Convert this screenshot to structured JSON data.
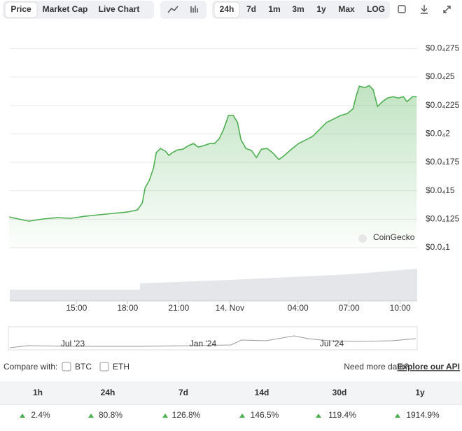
{
  "toolbar": {
    "tabs": [
      "Price",
      "Market Cap",
      "Live Chart"
    ],
    "ranges": [
      "24h",
      "7d",
      "1m",
      "3m",
      "1y",
      "Max",
      "LOG"
    ]
  },
  "chart_data": {
    "type": "line",
    "color": "#4caf50",
    "watermark": "CoinGecko",
    "x": [
      -0.95,
      -0.41,
      0.21,
      1.03,
      1.85,
      2.67,
      3.49,
      4.32,
      5.14,
      5.96,
      6.58,
      6.86,
      7.03,
      7.27,
      7.52,
      7.68,
      7.93,
      8.22,
      8.42,
      8.63,
      8.92,
      9.25,
      9.58,
      9.86,
      10.15,
      10.48,
      10.81,
      11.1,
      11.38,
      11.63,
      11.92,
      12.21,
      12.45,
      12.66,
      12.95,
      13.27,
      13.56,
      13.85,
      14.18,
      14.51,
      14.88,
      15.21,
      15.62,
      16.03,
      16.44,
      16.85,
      17.26,
      17.67,
      18.08,
      18.49,
      18.9,
      19.23,
      19.44,
      19.6,
      19.93,
      20.18,
      20.42,
      20.67,
      20.96,
      21.25,
      21.58,
      21.9,
      22.19,
      22.4,
      22.73,
      22.97
    ],
    "values": [
      1.27e-05,
      1.252e-05,
      1.233e-05,
      1.252e-05,
      1.264e-05,
      1.258e-05,
      1.276e-05,
      1.289e-05,
      1.301e-05,
      1.313e-05,
      1.332e-05,
      1.393e-05,
      1.528e-05,
      1.59e-05,
      1.7e-05,
      1.835e-05,
      1.872e-05,
      1.848e-05,
      1.811e-05,
      1.835e-05,
      1.859e-05,
      1.866e-05,
      1.897e-05,
      1.915e-05,
      1.885e-05,
      1.897e-05,
      1.915e-05,
      1.915e-05,
      1.958e-05,
      2.038e-05,
      2.161e-05,
      2.161e-05,
      2.1e-05,
      1.946e-05,
      1.872e-05,
      1.854e-05,
      1.792e-05,
      1.866e-05,
      1.872e-05,
      1.835e-05,
      1.774e-05,
      1.811e-05,
      1.866e-05,
      1.915e-05,
      1.946e-05,
      1.977e-05,
      2.038e-05,
      2.1e-05,
      2.13e-05,
      2.161e-05,
      2.179e-05,
      2.222e-05,
      2.345e-05,
      2.419e-05,
      2.407e-05,
      2.425e-05,
      2.388e-05,
      2.241e-05,
      2.284e-05,
      2.315e-05,
      2.327e-05,
      2.315e-05,
      2.327e-05,
      2.284e-05,
      2.327e-05,
      2.327e-05
    ],
    "xlim": [
      -1,
      23
    ],
    "xticks": [
      {
        "value": 3,
        "label": "15:00"
      },
      {
        "value": 6,
        "label": "18:00"
      },
      {
        "value": 9,
        "label": "21:00"
      },
      {
        "value": 12,
        "label": "14. Nov"
      },
      {
        "value": 16,
        "label": "04:00"
      },
      {
        "value": 19,
        "label": "07:00"
      },
      {
        "value": 22,
        "label": "10:00"
      }
    ],
    "ylim": [
      1e-05,
      2.9e-05
    ],
    "yticks": [
      {
        "value": 2.75e-05,
        "label": "$0.0₄275"
      },
      {
        "value": 2.5e-05,
        "label": "$0.0₄25"
      },
      {
        "value": 2.25e-05,
        "label": "$0.0₄225"
      },
      {
        "value": 2e-05,
        "label": "$0.0₄2"
      },
      {
        "value": 1.75e-05,
        "label": "$0.0₄175"
      },
      {
        "value": 1.5e-05,
        "label": "$0.0₄15"
      },
      {
        "value": 1.25e-05,
        "label": "$0.0₄125"
      },
      {
        "value": 1e-05,
        "label": "$0.0₄1"
      }
    ],
    "grid": true
  },
  "navigator": {
    "labels": [
      "Jul '23",
      "Jan '24",
      "Jul '24"
    ]
  },
  "compare": {
    "label": "Compare with:",
    "options": [
      "BTC",
      "ETH"
    ],
    "note": "Need more data?",
    "link": "Explore our API"
  },
  "table": {
    "headers": [
      "1h",
      "24h",
      "7d",
      "14d",
      "30d",
      "1y"
    ],
    "rows": [
      [
        "2.4%",
        "80.8%",
        "126.8%",
        "146.5%",
        "119.4%",
        "1914.9%"
      ]
    ]
  }
}
